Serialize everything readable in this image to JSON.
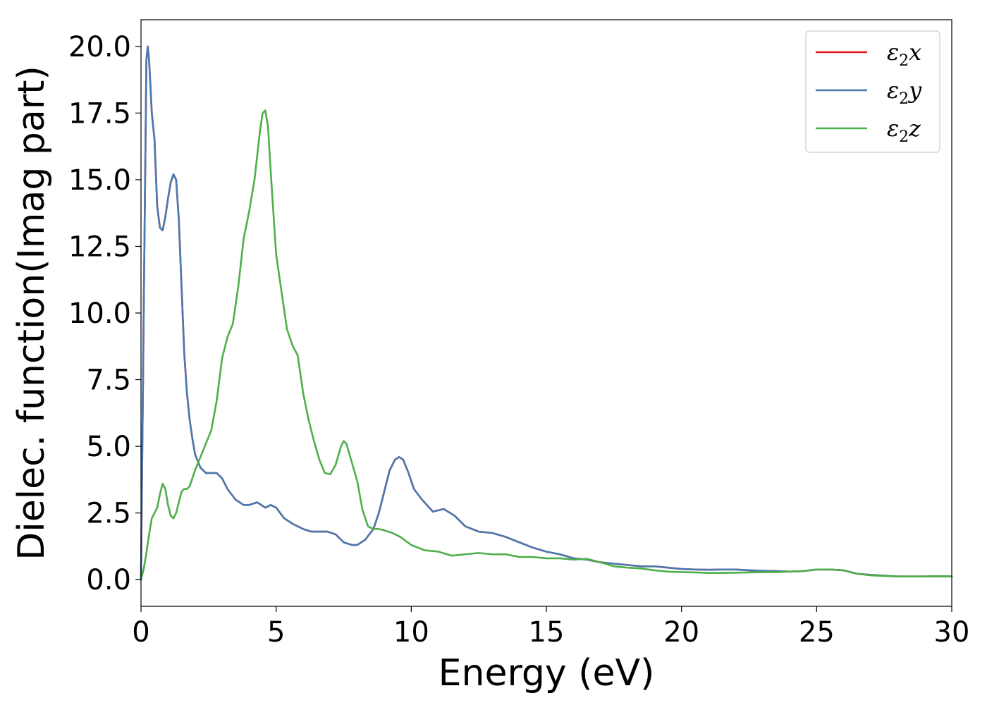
{
  "chart_data": {
    "type": "line",
    "xlabel": "Energy (eV)",
    "ylabel": "Dielec. function(Imag part)",
    "xlim": [
      0,
      30
    ],
    "ylim": [
      -1.0,
      21.0
    ],
    "x_ticks": [
      0,
      5,
      10,
      15,
      20,
      25,
      30
    ],
    "y_ticks": [
      0.0,
      2.5,
      5.0,
      7.5,
      10.0,
      12.5,
      15.0,
      17.5,
      20.0
    ],
    "x_tick_labels": [
      "0",
      "5",
      "10",
      "15",
      "20",
      "25",
      "30"
    ],
    "y_tick_labels": [
      "0.0",
      "2.5",
      "5.0",
      "7.5",
      "10.0",
      "12.5",
      "15.0",
      "17.5",
      "20.0"
    ],
    "grid": false,
    "legend_position": "top-right",
    "series": [
      {
        "name": "ε2x",
        "base": "ε",
        "sub": "2",
        "suffix": "x",
        "color": "#e41a1c",
        "x": [
          0,
          0.1,
          0.2,
          0.25,
          0.3,
          0.4,
          0.5,
          0.6,
          0.7,
          0.8,
          0.9,
          1.0,
          1.1,
          1.2,
          1.3,
          1.4,
          1.5,
          1.6,
          1.7,
          1.8,
          1.9,
          2.0,
          2.2,
          2.4,
          2.6,
          2.8,
          3.0,
          3.2,
          3.5,
          3.8,
          4.0,
          4.3,
          4.6,
          4.8,
          5.0,
          5.3,
          5.6,
          5.8,
          6.0,
          6.3,
          6.6,
          6.9,
          7.2,
          7.5,
          7.8,
          8.0,
          8.3,
          8.6,
          8.8,
          9.0,
          9.2,
          9.4,
          9.55,
          9.7,
          9.9,
          10.1,
          10.4,
          10.8,
          11.2,
          11.6,
          12.0,
          12.5,
          13.0,
          13.5,
          14.0,
          14.5,
          15.0,
          15.5,
          16.0,
          16.5,
          17.0,
          17.5,
          18.0,
          18.5,
          19.0,
          19.5,
          20.0,
          20.5,
          21.0,
          21.5,
          22.0,
          22.5,
          23.0,
          23.5,
          24.0,
          24.5,
          25.0,
          25.5,
          26.0,
          26.5,
          27.0,
          27.5,
          28.0,
          28.5,
          29.0,
          29.5,
          30.0
        ],
        "y": [
          0,
          10,
          19.5,
          20.0,
          19.5,
          17.5,
          16.5,
          14.0,
          13.2,
          13.1,
          13.6,
          14.3,
          14.9,
          15.2,
          15.0,
          13.5,
          11.0,
          8.5,
          7.0,
          6.0,
          5.3,
          4.7,
          4.2,
          4.0,
          4.0,
          4.0,
          3.8,
          3.4,
          3.0,
          2.8,
          2.8,
          2.9,
          2.7,
          2.8,
          2.7,
          2.3,
          2.1,
          2.0,
          1.9,
          1.8,
          1.8,
          1.8,
          1.7,
          1.4,
          1.3,
          1.3,
          1.5,
          1.9,
          2.5,
          3.3,
          4.1,
          4.5,
          4.6,
          4.5,
          4.0,
          3.4,
          3.0,
          2.55,
          2.65,
          2.4,
          2.0,
          1.8,
          1.75,
          1.6,
          1.4,
          1.2,
          1.05,
          0.95,
          0.8,
          0.75,
          0.65,
          0.6,
          0.55,
          0.5,
          0.5,
          0.45,
          0.4,
          0.38,
          0.37,
          0.38,
          0.38,
          0.35,
          0.33,
          0.32,
          0.3,
          0.32,
          0.38,
          0.38,
          0.35,
          0.22,
          0.18,
          0.15,
          0.12,
          0.12,
          0.12,
          0.13,
          0.12
        ]
      },
      {
        "name": "ε2y",
        "base": "ε",
        "sub": "2",
        "suffix": "y",
        "color": "#4a7ab0",
        "x": [
          0,
          0.1,
          0.2,
          0.25,
          0.3,
          0.4,
          0.5,
          0.6,
          0.7,
          0.8,
          0.9,
          1.0,
          1.1,
          1.2,
          1.3,
          1.4,
          1.5,
          1.6,
          1.7,
          1.8,
          1.9,
          2.0,
          2.2,
          2.4,
          2.6,
          2.8,
          3.0,
          3.2,
          3.5,
          3.8,
          4.0,
          4.3,
          4.6,
          4.8,
          5.0,
          5.3,
          5.6,
          5.8,
          6.0,
          6.3,
          6.6,
          6.9,
          7.2,
          7.5,
          7.8,
          8.0,
          8.3,
          8.6,
          8.8,
          9.0,
          9.2,
          9.4,
          9.55,
          9.7,
          9.9,
          10.1,
          10.4,
          10.8,
          11.2,
          11.6,
          12.0,
          12.5,
          13.0,
          13.5,
          14.0,
          14.5,
          15.0,
          15.5,
          16.0,
          16.5,
          17.0,
          17.5,
          18.0,
          18.5,
          19.0,
          19.5,
          20.0,
          20.5,
          21.0,
          21.5,
          22.0,
          22.5,
          23.0,
          23.5,
          24.0,
          24.5,
          25.0,
          25.5,
          26.0,
          26.5,
          27.0,
          27.5,
          28.0,
          28.5,
          29.0,
          29.5,
          30.0
        ],
        "y": [
          0,
          10,
          19.5,
          20.0,
          19.5,
          17.5,
          16.5,
          14.0,
          13.2,
          13.1,
          13.6,
          14.3,
          14.9,
          15.2,
          15.0,
          13.5,
          11.0,
          8.5,
          7.0,
          6.0,
          5.3,
          4.7,
          4.2,
          4.0,
          4.0,
          4.0,
          3.8,
          3.4,
          3.0,
          2.8,
          2.8,
          2.9,
          2.7,
          2.8,
          2.7,
          2.3,
          2.1,
          2.0,
          1.9,
          1.8,
          1.8,
          1.8,
          1.7,
          1.4,
          1.3,
          1.3,
          1.5,
          1.9,
          2.5,
          3.3,
          4.1,
          4.5,
          4.6,
          4.5,
          4.0,
          3.4,
          3.0,
          2.55,
          2.65,
          2.4,
          2.0,
          1.8,
          1.75,
          1.6,
          1.4,
          1.2,
          1.05,
          0.95,
          0.8,
          0.75,
          0.65,
          0.6,
          0.55,
          0.5,
          0.5,
          0.45,
          0.4,
          0.38,
          0.37,
          0.38,
          0.38,
          0.35,
          0.33,
          0.32,
          0.3,
          0.32,
          0.38,
          0.38,
          0.35,
          0.22,
          0.18,
          0.15,
          0.12,
          0.12,
          0.12,
          0.13,
          0.12
        ]
      },
      {
        "name": "ε2z",
        "base": "ε",
        "sub": "2",
        "suffix": "z",
        "color": "#4daf4a",
        "x": [
          0,
          0.1,
          0.2,
          0.3,
          0.4,
          0.5,
          0.6,
          0.7,
          0.8,
          0.9,
          1.0,
          1.1,
          1.2,
          1.3,
          1.4,
          1.5,
          1.6,
          1.7,
          1.8,
          1.9,
          2.0,
          2.2,
          2.4,
          2.6,
          2.8,
          3.0,
          3.2,
          3.4,
          3.6,
          3.8,
          4.0,
          4.2,
          4.4,
          4.5,
          4.6,
          4.7,
          4.8,
          5.0,
          5.2,
          5.4,
          5.6,
          5.8,
          6.0,
          6.2,
          6.4,
          6.6,
          6.8,
          7.0,
          7.2,
          7.4,
          7.5,
          7.6,
          7.8,
          8.0,
          8.2,
          8.4,
          8.6,
          8.8,
          9.0,
          9.3,
          9.6,
          10.0,
          10.5,
          11.0,
          11.5,
          12.0,
          12.5,
          13.0,
          13.5,
          14.0,
          14.5,
          15.0,
          15.5,
          16.0,
          16.5,
          17.0,
          17.5,
          18.0,
          18.5,
          19.0,
          19.5,
          20.0,
          20.5,
          21.0,
          21.5,
          22.0,
          22.5,
          23.0,
          23.5,
          24.0,
          24.5,
          25.0,
          25.5,
          26.0,
          26.5,
          27.0,
          27.5,
          28.0,
          28.5,
          29.0,
          29.5,
          30.0
        ],
        "y": [
          0,
          0.4,
          1.0,
          1.7,
          2.3,
          2.5,
          2.7,
          3.2,
          3.6,
          3.4,
          2.8,
          2.4,
          2.3,
          2.5,
          2.9,
          3.3,
          3.4,
          3.4,
          3.5,
          3.8,
          4.1,
          4.6,
          5.1,
          5.6,
          6.7,
          8.3,
          9.1,
          9.6,
          11.0,
          12.8,
          13.8,
          15.0,
          16.8,
          17.5,
          17.6,
          17.0,
          15.3,
          12.2,
          10.8,
          9.4,
          8.8,
          8.4,
          7.0,
          6.0,
          5.2,
          4.5,
          4.0,
          3.95,
          4.3,
          5.0,
          5.2,
          5.1,
          4.4,
          3.7,
          2.6,
          2.0,
          1.9,
          1.9,
          1.85,
          1.75,
          1.6,
          1.3,
          1.1,
          1.05,
          0.9,
          0.95,
          1.0,
          0.95,
          0.95,
          0.85,
          0.85,
          0.8,
          0.8,
          0.75,
          0.78,
          0.65,
          0.5,
          0.45,
          0.42,
          0.35,
          0.3,
          0.28,
          0.27,
          0.25,
          0.25,
          0.26,
          0.27,
          0.28,
          0.28,
          0.3,
          0.32,
          0.38,
          0.38,
          0.35,
          0.22,
          0.16,
          0.14,
          0.12,
          0.12,
          0.12,
          0.13,
          0.12
        ]
      }
    ]
  }
}
